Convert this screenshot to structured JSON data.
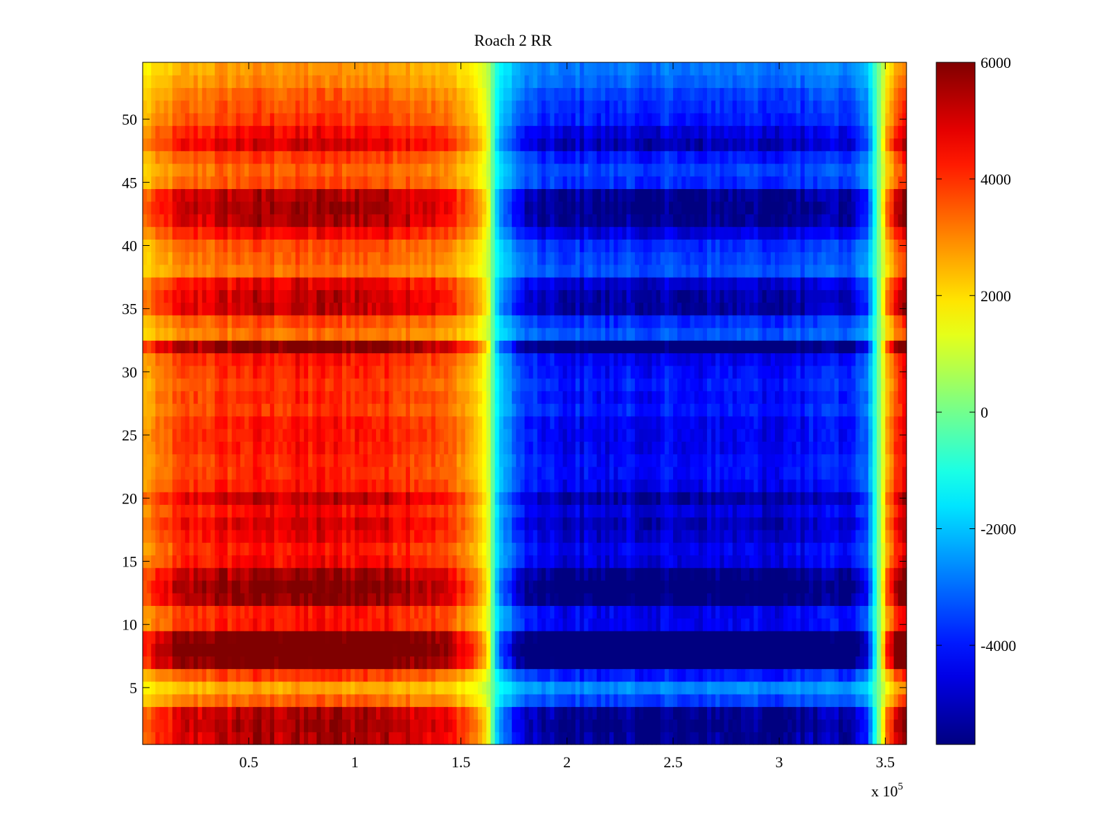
{
  "chart_data": {
    "type": "heatmap",
    "title": "Roach 2 RR",
    "colormap": "jet",
    "x_multiplier_label": "x 10",
    "x_multiplier_exponent": "5",
    "xlim": [
      0,
      360000
    ],
    "ylim": [
      0.5,
      54.5
    ],
    "x_ticks": [
      50000,
      100000,
      150000,
      200000,
      250000,
      300000,
      350000
    ],
    "x_tick_labels": [
      "0.5",
      "1",
      "1.5",
      "2",
      "2.5",
      "3",
      "3.5"
    ],
    "y_ticks": [
      5,
      10,
      15,
      20,
      25,
      30,
      35,
      40,
      45,
      50
    ],
    "y_tick_labels": [
      "5",
      "10",
      "15",
      "20",
      "25",
      "30",
      "35",
      "40",
      "45",
      "50"
    ],
    "rows": 54,
    "colorbar": {
      "clim": [
        -5700,
        6000
      ],
      "ticks": [
        -4000,
        -2000,
        0,
        2000,
        4000,
        6000
      ],
      "tick_labels": [
        "-4000",
        "-2000",
        "0",
        "2000",
        "4000",
        "6000"
      ]
    },
    "column_profile": {
      "x": [
        0,
        20000,
        50000,
        100000,
        130000,
        150000,
        160000,
        163000,
        167000,
        172000,
        180000,
        200000,
        250000,
        300000,
        335000,
        342000,
        346000,
        350000,
        355000,
        360000
      ],
      "value": [
        2600,
        3900,
        4300,
        4400,
        4100,
        3200,
        2000,
        1000,
        -1500,
        -2700,
        -3800,
        -4400,
        -4400,
        -4400,
        -4100,
        -2800,
        -500,
        2000,
        4200,
        4500
      ]
    },
    "row_offsets": {
      "rows": [
        1,
        2,
        3,
        4,
        5,
        6,
        7,
        8,
        9,
        10,
        11,
        12,
        13,
        14,
        15,
        16,
        17,
        18,
        19,
        20,
        21,
        22,
        23,
        24,
        25,
        26,
        27,
        28,
        29,
        30,
        31,
        32,
        33,
        34,
        35,
        36,
        37,
        38,
        39,
        40,
        41,
        42,
        43,
        44,
        45,
        46,
        47,
        48,
        49,
        50,
        51,
        52,
        53,
        54
      ],
      "scale": [
        1.25,
        1.3,
        1.25,
        0.8,
        0.6,
        0.9,
        1.5,
        1.6,
        1.5,
        1.0,
        1.0,
        1.35,
        1.4,
        1.3,
        1.05,
        1.0,
        1.1,
        1.15,
        1.05,
        1.2,
        1.0,
        0.95,
        0.95,
        1.0,
        1.0,
        1.0,
        0.9,
        0.95,
        0.9,
        0.95,
        1.0,
        1.4,
        0.75,
        0.85,
        1.2,
        1.2,
        1.1,
        0.75,
        0.8,
        0.85,
        1.05,
        1.25,
        1.3,
        1.25,
        0.85,
        0.8,
        0.9,
        1.15,
        1.05,
        0.9,
        0.85,
        0.8,
        0.7,
        0.65
      ]
    }
  }
}
